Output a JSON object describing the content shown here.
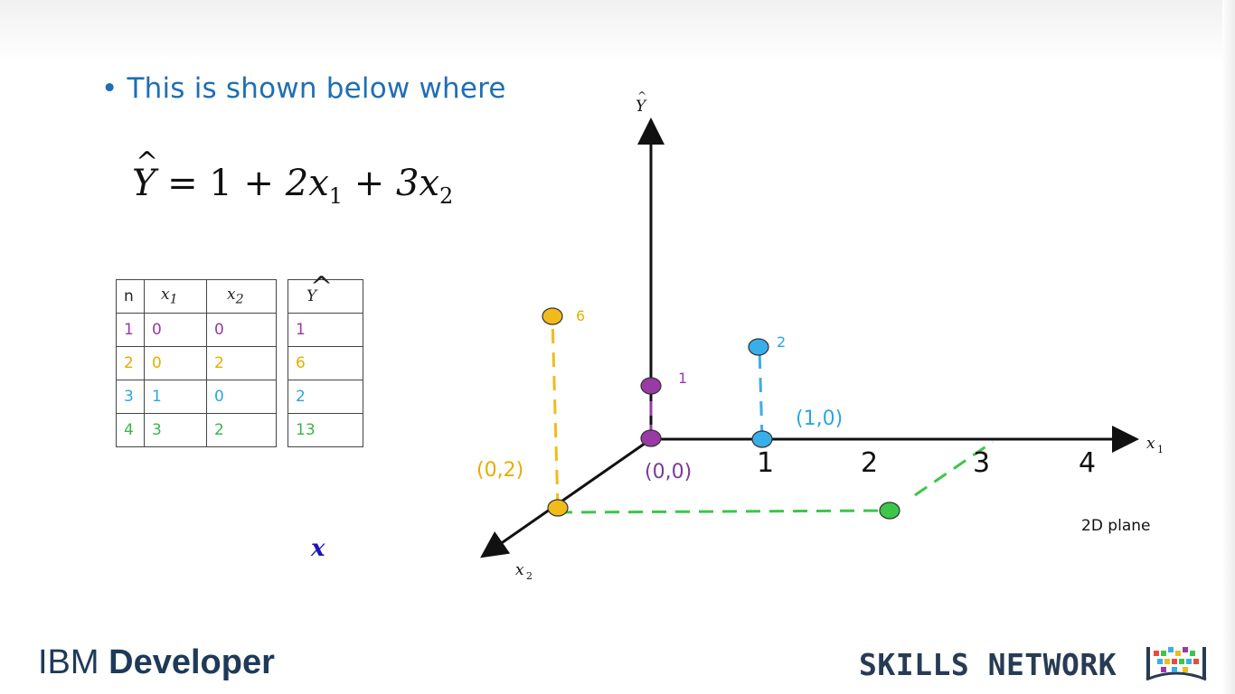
{
  "slide": {
    "bullet": "This is shown below where",
    "equation": {
      "lhs": "Y",
      "terms": [
        "1",
        "2x",
        "1",
        "3x",
        "2"
      ]
    }
  },
  "table_x": {
    "headers": [
      "n",
      "x1",
      "x2"
    ],
    "rows": [
      {
        "n": "1",
        "x1": "0",
        "x2": "0",
        "color": "#9a3aa4"
      },
      {
        "n": "2",
        "x1": "0",
        "x2": "2",
        "color": "#e7ad00"
      },
      {
        "n": "3",
        "x1": "1",
        "x2": "0",
        "color": "#2aa6e0"
      },
      {
        "n": "4",
        "x1": "3",
        "x2": "2",
        "color": "#3ab54a"
      }
    ]
  },
  "table_y": {
    "header": "Y",
    "values": [
      "1",
      "6",
      "2",
      "13"
    ]
  },
  "stray_symbol": "x",
  "diagram": {
    "axis_y_label": "Y",
    "axis_x1_label": "x",
    "axis_x1_sub": "1",
    "axis_x2_label": "x",
    "axis_x2_sub": "2",
    "ticks": [
      "1",
      "2",
      "3",
      "4"
    ],
    "point_labels": {
      "origin": "(0,0)",
      "one_zero": "(1,0)",
      "zero_two": "(0,2)"
    },
    "value_labels": {
      "purple": "1",
      "blue": "2",
      "yellow": "6"
    },
    "plane_label": "2D plane"
  },
  "logos": {
    "ibm_light": "IBM ",
    "ibm_bold": "Developer",
    "skills": "SKILLS NETWORK"
  },
  "colors": {
    "purple": "#9a3aa4",
    "yellow": "#f2bb1c",
    "blue": "#3aaee8",
    "green": "#3cc64a",
    "bullet": "#1f6fb4"
  }
}
